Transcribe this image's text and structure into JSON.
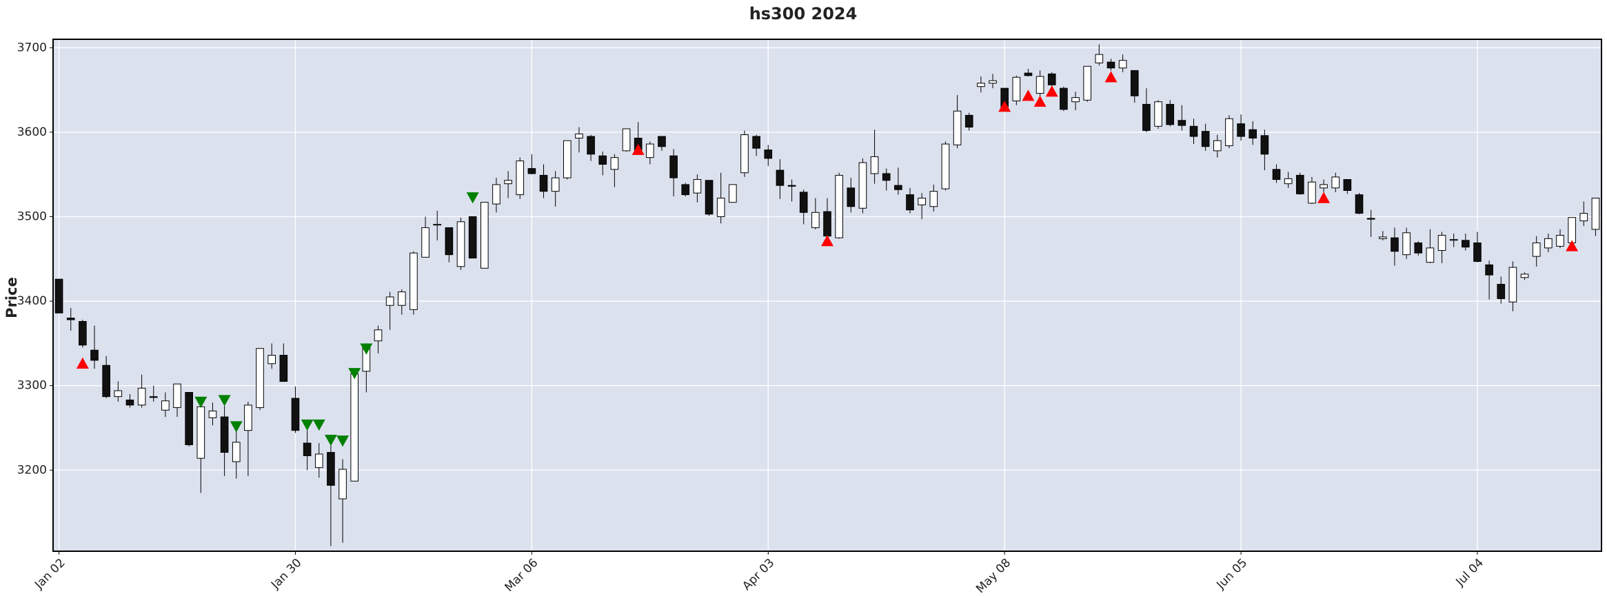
{
  "chart_data": {
    "type": "candlestick",
    "title": "hs300 2024",
    "y_label": "Price",
    "categories": [
      "Jan 02",
      null,
      null,
      null,
      null,
      null,
      null,
      null,
      null,
      null,
      null,
      null,
      null,
      null,
      null,
      null,
      null,
      null,
      null,
      null,
      "Jan 30",
      null,
      null,
      null,
      null,
      null,
      null,
      null,
      null,
      null,
      null,
      null,
      null,
      null,
      null,
      null,
      null,
      null,
      null,
      null,
      "Mar 06",
      null,
      null,
      null,
      null,
      null,
      null,
      null,
      null,
      null,
      null,
      null,
      null,
      null,
      null,
      null,
      null,
      null,
      null,
      null,
      "Apr 03",
      null,
      null,
      null,
      null,
      null,
      null,
      null,
      null,
      null,
      null,
      null,
      null,
      null,
      null,
      null,
      null,
      null,
      null,
      null,
      "May 08",
      null,
      null,
      null,
      null,
      null,
      null,
      null,
      null,
      null,
      null,
      null,
      null,
      null,
      null,
      null,
      null,
      null,
      null,
      null,
      "Jun 05",
      null,
      null,
      null,
      null,
      null,
      null,
      null,
      null,
      null,
      null,
      null,
      null,
      null,
      null,
      null,
      null,
      null,
      null,
      null,
      "Jul 04",
      null,
      null,
      null,
      null,
      null,
      null,
      null,
      null,
      null,
      null
    ],
    "open": [
      3426,
      3380,
      3376,
      3342,
      3324,
      3287,
      3283,
      3277,
      3287,
      3271,
      3274,
      3292,
      3214,
      3262,
      3263,
      3210,
      3247,
      3274,
      3326,
      3336,
      3285,
      3232,
      3203,
      3221,
      3166,
      3187,
      3317,
      3353,
      3395,
      3395,
      3390,
      3452,
      3490,
      3487,
      3441,
      3500,
      3439,
      3515,
      3539,
      3526,
      3557,
      3549,
      3530,
      3546,
      3593,
      3595,
      3572,
      3556,
      3578,
      3593,
      3570,
      3595,
      3572,
      3538,
      3528,
      3543,
      3500,
      3517,
      3552,
      3595,
      3579,
      3555,
      3537,
      3529,
      3487,
      3506,
      3475,
      3534,
      3510,
      3551,
      3551,
      3537,
      3526,
      3514,
      3512,
      3533,
      3585,
      3620,
      3654,
      3658,
      3652,
      3637,
      3670,
      3646,
      3669,
      3652,
      3636,
      3638,
      3682,
      3683,
      3676,
      3673,
      3633,
      3607,
      3633,
      3614,
      3607,
      3601,
      3578,
      3584,
      3610,
      3603,
      3596,
      3556,
      3539,
      3549,
      3516,
      3534,
      3534,
      3544,
      3526,
      3498,
      3474,
      3475,
      3455,
      3469,
      3446,
      3460,
      3472,
      3472,
      3469,
      3443,
      3420,
      3399,
      3428,
      3453,
      3463,
      3465,
      3469,
      3495,
      3485
    ],
    "high": [
      3426,
      3392,
      3378,
      3371,
      3335,
      3305,
      3290,
      3313,
      3300,
      3292,
      3302,
      3292,
      3283,
      3280,
      3276,
      3246,
      3281,
      3344,
      3350,
      3350,
      3299,
      3247,
      3232,
      3238,
      3213,
      3320,
      3350,
      3371,
      3411,
      3414,
      3459,
      3500,
      3507,
      3487,
      3499,
      3500,
      3517,
      3546,
      3554,
      3570,
      3574,
      3562,
      3554,
      3590,
      3606,
      3597,
      3577,
      3574,
      3604,
      3612,
      3589,
      3595,
      3580,
      3540,
      3550,
      3543,
      3552,
      3538,
      3602,
      3597,
      3585,
      3568,
      3544,
      3532,
      3522,
      3522,
      3552,
      3546,
      3569,
      3603,
      3557,
      3558,
      3534,
      3528,
      3538,
      3589,
      3644,
      3623,
      3666,
      3669,
      3652,
      3667,
      3675,
      3673,
      3671,
      3654,
      3648,
      3678,
      3704,
      3687,
      3692,
      3673,
      3652,
      3638,
      3638,
      3632,
      3616,
      3610,
      3597,
      3620,
      3621,
      3613,
      3603,
      3562,
      3553,
      3552,
      3547,
      3544,
      3552,
      3544,
      3528,
      3508,
      3483,
      3487,
      3487,
      3471,
      3485,
      3482,
      3480,
      3480,
      3482,
      3448,
      3429,
      3447,
      3434,
      3477,
      3480,
      3485,
      3499,
      3518,
      3522
    ],
    "low": [
      3386,
      3365,
      3345,
      3320,
      3285,
      3281,
      3274,
      3274,
      3281,
      3263,
      3263,
      3228,
      3173,
      3253,
      3193,
      3190,
      3193,
      3271,
      3320,
      3305,
      3244,
      3200,
      3191,
      3110,
      3114,
      3187,
      3292,
      3338,
      3366,
      3384,
      3384,
      3452,
      3472,
      3446,
      3437,
      3451,
      3439,
      3505,
      3522,
      3521,
      3550,
      3522,
      3512,
      3544,
      3576,
      3566,
      3549,
      3535,
      3577,
      3574,
      3562,
      3578,
      3524,
      3524,
      3517,
      3501,
      3492,
      3517,
      3547,
      3572,
      3560,
      3521,
      3518,
      3491,
      3485,
      3476,
      3474,
      3505,
      3504,
      3539,
      3531,
      3526,
      3504,
      3497,
      3506,
      3531,
      3581,
      3602,
      3647,
      3652,
      3630,
      3632,
      3666,
      3641,
      3654,
      3625,
      3626,
      3636,
      3679,
      3673,
      3671,
      3635,
      3600,
      3604,
      3607,
      3602,
      3586,
      3578,
      3570,
      3581,
      3590,
      3585,
      3555,
      3540,
      3534,
      3526,
      3515,
      3526,
      3529,
      3527,
      3503,
      3476,
      3472,
      3442,
      3450,
      3454,
      3445,
      3445,
      3464,
      3460,
      3446,
      3402,
      3397,
      3388,
      3425,
      3441,
      3458,
      3463,
      3462,
      3489,
      3477
    ],
    "close": [
      3386,
      3378,
      3348,
      3330,
      3287,
      3294,
      3277,
      3297,
      3286,
      3282,
      3302,
      3230,
      3275,
      3270,
      3221,
      3233,
      3277,
      3344,
      3336,
      3305,
      3247,
      3217,
      3219,
      3182,
      3201,
      3314,
      3346,
      3366,
      3405,
      3411,
      3457,
      3487,
      3491,
      3455,
      3494,
      3451,
      3517,
      3538,
      3543,
      3566,
      3551,
      3530,
      3546,
      3590,
      3598,
      3574,
      3562,
      3570,
      3604,
      3579,
      3586,
      3583,
      3546,
      3526,
      3544,
      3503,
      3522,
      3538,
      3597,
      3581,
      3569,
      3537,
      3536,
      3505,
      3505,
      3477,
      3549,
      3512,
      3564,
      3571,
      3543,
      3532,
      3508,
      3522,
      3530,
      3586,
      3625,
      3606,
      3658,
      3661,
      3630,
      3665,
      3667,
      3666,
      3656,
      3627,
      3641,
      3678,
      3692,
      3676,
      3685,
      3643,
      3602,
      3636,
      3609,
      3608,
      3595,
      3583,
      3590,
      3616,
      3595,
      3593,
      3574,
      3544,
      3545,
      3527,
      3541,
      3538,
      3547,
      3531,
      3504,
      3497,
      3476,
      3459,
      3481,
      3457,
      3463,
      3478,
      3473,
      3464,
      3447,
      3431,
      3403,
      3440,
      3432,
      3469,
      3474,
      3478,
      3499,
      3504,
      3522
    ],
    "markers": [
      {
        "color": "#ff0000",
        "marker": "^",
        "values": [
          null,
          null,
          3326,
          null,
          null,
          null,
          null,
          null,
          null,
          null,
          null,
          null,
          null,
          null,
          null,
          null,
          null,
          null,
          null,
          null,
          null,
          null,
          null,
          null,
          null,
          null,
          null,
          null,
          null,
          null,
          null,
          null,
          null,
          null,
          null,
          null,
          null,
          null,
          null,
          null,
          null,
          null,
          null,
          null,
          null,
          null,
          null,
          null,
          null,
          3579,
          null,
          null,
          null,
          null,
          null,
          null,
          null,
          null,
          null,
          null,
          null,
          null,
          null,
          null,
          null,
          3471,
          null,
          null,
          null,
          null,
          null,
          null,
          null,
          null,
          null,
          null,
          null,
          null,
          null,
          null,
          3630,
          null,
          3643,
          3636,
          3648,
          null,
          null,
          null,
          null,
          3665,
          null,
          null,
          null,
          null,
          null,
          null,
          null,
          null,
          null,
          null,
          null,
          null,
          null,
          null,
          null,
          null,
          null,
          3522,
          null,
          null,
          null,
          null,
          null,
          null,
          null,
          null,
          null,
          null,
          null,
          null,
          null,
          null,
          null,
          null,
          null,
          null,
          null,
          null,
          3465,
          null,
          null
        ]
      },
      {
        "color": "#008000",
        "marker": "v",
        "values": [
          null,
          null,
          null,
          null,
          null,
          null,
          null,
          null,
          null,
          null,
          null,
          null,
          3281,
          null,
          3283,
          3252,
          null,
          null,
          null,
          null,
          null,
          3254,
          3254,
          3236,
          3235,
          3315,
          3344,
          null,
          null,
          null,
          null,
          null,
          null,
          null,
          null,
          3523,
          null,
          null,
          null,
          null,
          null,
          null,
          null,
          null,
          null,
          null,
          null,
          null,
          null,
          null,
          null,
          null,
          null,
          null,
          null,
          null,
          null,
          null,
          null,
          null,
          null,
          null,
          null,
          null,
          null,
          null,
          null,
          null,
          null,
          null,
          null,
          null,
          null,
          null,
          null,
          null,
          null,
          null,
          null,
          null,
          null,
          null,
          null,
          null,
          null,
          null,
          null,
          null,
          null,
          null,
          null,
          null,
          null,
          null,
          null,
          null,
          null,
          null,
          null,
          null,
          null,
          null,
          null,
          null,
          null,
          null,
          null,
          null,
          null,
          null,
          null,
          null,
          null,
          null,
          null,
          null,
          null,
          null,
          null,
          null,
          null,
          null,
          null,
          null,
          null,
          null,
          null,
          null,
          null,
          null,
          null
        ]
      }
    ],
    "up_color": "#ffffff",
    "down_color": "#111111",
    "edge_color": "#000000",
    "background": "#dce1ee",
    "grid": true,
    "ylim": [
      3104,
      3710
    ],
    "yticks": [
      3200,
      3300,
      3400,
      3500,
      3600,
      3700
    ]
  }
}
